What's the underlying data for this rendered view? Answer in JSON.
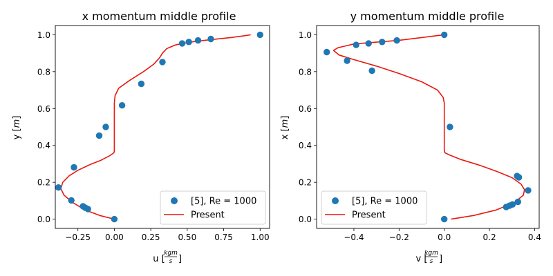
{
  "chart_data": [
    {
      "type": "scatter+line",
      "title": "x momentum middle profile",
      "xlabel_main": "u",
      "xlabel_unit_num": "kgm",
      "xlabel_unit_den": "s",
      "ylabel_main": "y",
      "ylabel_unit": "m",
      "xlim": [
        -0.405,
        1.065
      ],
      "ylim": [
        -0.05,
        1.05
      ],
      "xticks": [
        -0.25,
        0.0,
        0.25,
        0.5,
        0.75,
        1.0
      ],
      "xtick_labels": [
        "−0.25",
        "0.00",
        "0.25",
        "0.50",
        "0.75",
        "1.00"
      ],
      "yticks": [
        0.0,
        0.2,
        0.4,
        0.6,
        0.8,
        1.0
      ],
      "ytick_labels": [
        "0.0",
        "0.2",
        "0.4",
        "0.6",
        "0.8",
        "1.0"
      ],
      "legend_position": "lower-right",
      "series": [
        {
          "name": "[5], Re = 1000",
          "kind": "scatter",
          "color": "#1f77b4",
          "x": [
            0.0,
            -0.181,
            -0.199,
            -0.215,
            -0.295,
            -0.383,
            -0.277,
            -0.104,
            -0.059,
            0.053,
            0.185,
            0.33,
            0.465,
            0.511,
            0.574,
            0.662,
            1.0
          ],
          "y": [
            0.0,
            0.055,
            0.062,
            0.07,
            0.102,
            0.172,
            0.281,
            0.453,
            0.5,
            0.617,
            0.734,
            0.852,
            0.953,
            0.961,
            0.969,
            0.977,
            1.0
          ]
        },
        {
          "name": "Present",
          "kind": "line",
          "color": "#e8180f",
          "x": [
            0.0,
            -0.1,
            -0.2,
            -0.285,
            -0.345,
            -0.367,
            -0.354,
            -0.31,
            -0.25,
            -0.17,
            -0.09,
            -0.03,
            -0.003,
            0.0,
            0.0,
            0.0,
            0.0,
            0.0,
            0.005,
            0.03,
            0.1,
            0.2,
            0.27,
            0.31,
            0.33,
            0.36,
            0.42,
            0.52,
            0.62,
            0.72,
            0.8,
            0.88,
            0.935
          ],
          "y": [
            0.0,
            0.02,
            0.05,
            0.09,
            0.13,
            0.165,
            0.2,
            0.235,
            0.265,
            0.295,
            0.32,
            0.345,
            0.36,
            0.37,
            0.45,
            0.55,
            0.6,
            0.63,
            0.67,
            0.71,
            0.75,
            0.8,
            0.84,
            0.875,
            0.9,
            0.925,
            0.945,
            0.96,
            0.97,
            0.978,
            0.985,
            0.993,
            1.0
          ]
        }
      ]
    },
    {
      "type": "scatter+line",
      "title": "y momentum middle profile",
      "xlabel_main": "v",
      "xlabel_unit_num": "kgm",
      "xlabel_unit_den": "s",
      "ylabel_main": "x",
      "ylabel_unit": "m",
      "xlim": [
        -0.565,
        0.42
      ],
      "ylim": [
        -0.05,
        1.05
      ],
      "xticks": [
        -0.4,
        -0.2,
        0.0,
        0.2,
        0.4
      ],
      "xtick_labels": [
        "−0.4",
        "−0.2",
        "0.0",
        "0.2",
        "0.4"
      ],
      "yticks": [
        0.0,
        0.2,
        0.4,
        0.6,
        0.8,
        1.0
      ],
      "ytick_labels": [
        "0.0",
        "0.2",
        "0.4",
        "0.6",
        "0.8",
        "1.0"
      ],
      "legend_position": "lower-left",
      "series": [
        {
          "name": "[5], Re = 1000",
          "kind": "scatter",
          "color": "#1f77b4",
          "x": [
            0.0,
            0.274,
            0.289,
            0.302,
            0.326,
            0.371,
            0.33,
            0.322,
            0.025,
            -0.32,
            -0.43,
            -0.52,
            -0.39,
            -0.335,
            -0.275,
            -0.21,
            0.0
          ],
          "y": [
            0.0,
            0.066,
            0.073,
            0.08,
            0.094,
            0.156,
            0.227,
            0.234,
            0.5,
            0.805,
            0.859,
            0.906,
            0.945,
            0.953,
            0.961,
            0.969,
            1.0
          ]
        },
        {
          "name": "Present",
          "kind": "line",
          "color": "#e8180f",
          "x": [
            0.03,
            0.13,
            0.23,
            0.31,
            0.35,
            0.355,
            0.34,
            0.3,
            0.23,
            0.15,
            0.07,
            0.02,
            0.003,
            0.0,
            0.0,
            0.0,
            0.0,
            0.0,
            -0.005,
            -0.03,
            -0.1,
            -0.2,
            -0.3,
            -0.4,
            -0.465,
            -0.49,
            -0.47,
            -0.4,
            -0.3,
            -0.2,
            -0.1,
            0.0
          ],
          "y": [
            0.0,
            0.02,
            0.05,
            0.09,
            0.13,
            0.16,
            0.19,
            0.225,
            0.26,
            0.295,
            0.325,
            0.35,
            0.36,
            0.37,
            0.45,
            0.55,
            0.6,
            0.63,
            0.66,
            0.7,
            0.745,
            0.79,
            0.83,
            0.865,
            0.89,
            0.915,
            0.93,
            0.95,
            0.96,
            0.97,
            0.985,
            1.0
          ]
        }
      ]
    }
  ]
}
